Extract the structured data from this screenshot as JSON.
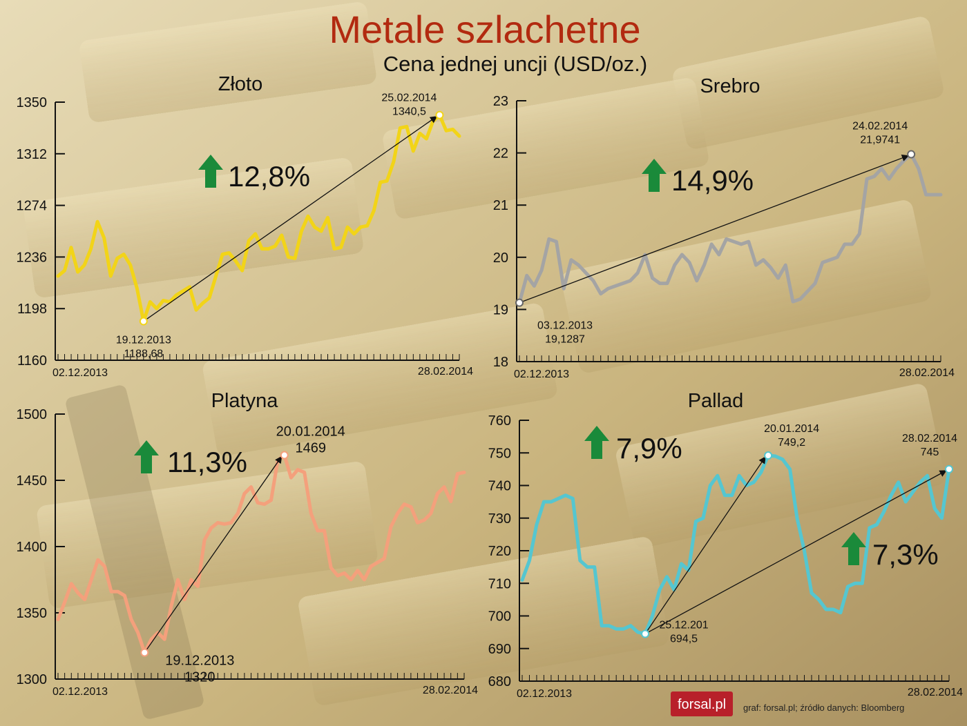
{
  "header": {
    "title": "Metale szlachetne",
    "subtitle": "Cena jednej uncji (USD/oz.)"
  },
  "footer": {
    "logo": "forsal.pl",
    "credits": "graf: forsal.pl;   źródło danych: Bloomberg"
  },
  "colors": {
    "title": "#b22a10",
    "gold": "#f2d418",
    "silver": "#a4a4a4",
    "platinum": "#f4a07c",
    "palladium": "#55c6d0",
    "arrow_up": "#1a8a3a",
    "logo_bg": "#b8202a"
  },
  "chart_data": [
    {
      "id": "gold",
      "type": "line",
      "title": "Złoto",
      "ylim": [
        1160,
        1350
      ],
      "yticks": [
        1160,
        1198,
        1236,
        1274,
        1312,
        1350
      ],
      "ytick_labels": [
        "1160",
        "1198",
        "1236",
        "1274",
        "1312",
        "1350"
      ],
      "x_start": "02.12.2013",
      "x_end": "28.02.2014",
      "values": [
        1222,
        1226,
        1243,
        1225,
        1230,
        1242,
        1262,
        1250,
        1222,
        1235,
        1238,
        1230,
        1213,
        1188.68,
        1203,
        1198,
        1204,
        1203,
        1208,
        1211,
        1214,
        1197,
        1202,
        1206,
        1222,
        1238,
        1239,
        1233,
        1226,
        1248,
        1253,
        1242,
        1242,
        1244,
        1252,
        1236,
        1235,
        1255,
        1266,
        1258,
        1255,
        1265,
        1242,
        1243,
        1258,
        1253,
        1258,
        1259,
        1270,
        1291,
        1292,
        1306,
        1331,
        1332,
        1314,
        1327,
        1323,
        1336,
        1340.5,
        1329,
        1330,
        1325
      ],
      "change_label": "12,8%",
      "annotations": [
        {
          "index": 13,
          "value": 1188.68,
          "date": "19.12.2013",
          "value_label": "1188,68"
        },
        {
          "index": 58,
          "value": 1340.5,
          "date": "25.02.2014",
          "value_label": "1340,5"
        }
      ]
    },
    {
      "id": "silver",
      "type": "line",
      "title": "Srebro",
      "ylim": [
        18,
        23
      ],
      "yticks": [
        18,
        19,
        20,
        21,
        22,
        23
      ],
      "ytick_labels": [
        "18",
        "19",
        "20",
        "21",
        "22",
        "23"
      ],
      "x_start": "02.12.2013",
      "x_end": "28.02.2014",
      "values": [
        19.1287,
        19.65,
        19.45,
        19.75,
        20.35,
        20.3,
        19.4,
        19.95,
        19.85,
        19.7,
        19.55,
        19.3,
        19.4,
        19.45,
        19.5,
        19.55,
        19.7,
        20.05,
        19.6,
        19.5,
        19.5,
        19.85,
        20.05,
        19.9,
        19.55,
        19.85,
        20.25,
        20.05,
        20.35,
        20.3,
        20.25,
        20.3,
        19.85,
        19.95,
        19.8,
        19.6,
        19.85,
        19.15,
        19.2,
        19.35,
        19.5,
        19.9,
        19.95,
        20.0,
        20.25,
        20.25,
        20.45,
        21.5,
        21.55,
        21.7,
        21.5,
        21.7,
        21.85,
        21.9741,
        21.7,
        21.2,
        21.2,
        21.2
      ],
      "change_label": "14,9%",
      "annotations": [
        {
          "index": 0,
          "value": 19.1287,
          "date": "03.12.2013",
          "value_label": "19,1287"
        },
        {
          "index": 53,
          "value": 21.9741,
          "date": "24.02.2014",
          "value_label": "21,9741"
        }
      ]
    },
    {
      "id": "platinum",
      "type": "line",
      "title": "Platyna",
      "ylim": [
        1300,
        1500
      ],
      "yticks": [
        1300,
        1350,
        1400,
        1450,
        1500
      ],
      "ytick_labels": [
        "1300",
        "1350",
        "1400",
        "1450",
        "1500"
      ],
      "x_start": "02.12.2013",
      "x_end": "28.02.2014",
      "values": [
        1345,
        1358,
        1372,
        1365,
        1360,
        1375,
        1390,
        1385,
        1366,
        1366,
        1363,
        1345,
        1335,
        1320,
        1330,
        1335,
        1330,
        1355,
        1375,
        1360,
        1375,
        1370,
        1405,
        1414,
        1418,
        1417,
        1418,
        1425,
        1440,
        1445,
        1433,
        1432,
        1435,
        1465,
        1469,
        1452,
        1458,
        1456,
        1425,
        1412,
        1412,
        1384,
        1378,
        1380,
        1375,
        1382,
        1375,
        1385,
        1388,
        1391,
        1415,
        1425,
        1432,
        1430,
        1418,
        1420,
        1425,
        1440,
        1445,
        1434,
        1455,
        1456
      ],
      "change_label": "11,3%",
      "annotations": [
        {
          "index": 13,
          "value": 1320,
          "date": "19.12.2013",
          "value_label": "1320"
        },
        {
          "index": 34,
          "value": 1469,
          "date": "20.01.2014",
          "value_label": "1469"
        }
      ]
    },
    {
      "id": "palladium",
      "type": "line",
      "title": "Pallad",
      "ylim": [
        680,
        760
      ],
      "yticks": [
        680,
        690,
        700,
        710,
        720,
        730,
        740,
        750,
        760
      ],
      "ytick_labels": [
        "680",
        "690",
        "700",
        "710",
        "720",
        "730",
        "740",
        "750",
        "760"
      ],
      "x_start": "02.12.2013",
      "x_end": "28.02.2014",
      "values": [
        711,
        717,
        728,
        735,
        735,
        736,
        737,
        736,
        717,
        715,
        715,
        697,
        697,
        696,
        696,
        697,
        695,
        694.5,
        700,
        708,
        712,
        708,
        716,
        714,
        729,
        730,
        740,
        743,
        737,
        737,
        743,
        740,
        741,
        744,
        749.2,
        749,
        748,
        745,
        730,
        720,
        707,
        705,
        702,
        702,
        701,
        709,
        710,
        710,
        727,
        728,
        732,
        737,
        741,
        735,
        738,
        741,
        743,
        733,
        730,
        745
      ],
      "change_labels": [
        "7,9%",
        "7,3%"
      ],
      "annotations": [
        {
          "index": 17,
          "value": 694.5,
          "date": "25.12.201",
          "value_label": "694,5"
        },
        {
          "index": 34,
          "value": 749.2,
          "date": "20.01.2014",
          "value_label": "749,2"
        },
        {
          "index": 59,
          "value": 745,
          "date": "28.02.2014",
          "value_label": "745"
        }
      ]
    }
  ]
}
